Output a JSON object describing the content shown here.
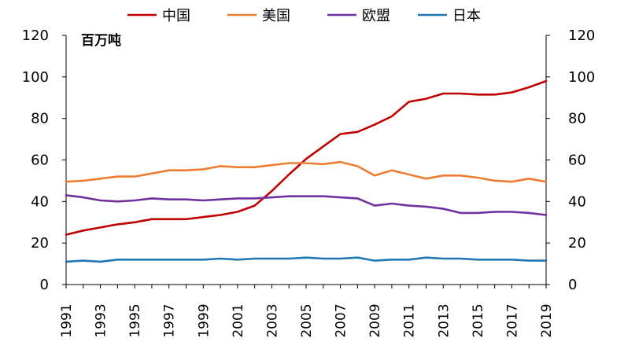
{
  "chart_data": {
    "type": "line",
    "unit_label": "百万吨",
    "x": [
      1991,
      1992,
      1993,
      1994,
      1995,
      1996,
      1997,
      1998,
      1999,
      2000,
      2001,
      2002,
      2003,
      2004,
      2005,
      2006,
      2007,
      2008,
      2009,
      2010,
      2011,
      2012,
      2013,
      2014,
      2015,
      2016,
      2017,
      2018,
      2019
    ],
    "x_tick_labels": [
      "1991",
      "1993",
      "1995",
      "1997",
      "1999",
      "2001",
      "2003",
      "2005",
      "2007",
      "2009",
      "2011",
      "2013",
      "2015",
      "2017",
      "2019"
    ],
    "ylim": [
      0,
      120
    ],
    "y_ticks": [
      0,
      20,
      40,
      60,
      80,
      100,
      120
    ],
    "y_tick_labels": [
      "0",
      "20",
      "40",
      "60",
      "80",
      "100",
      "120"
    ],
    "y2_ticks": [
      0,
      20,
      40,
      60,
      80,
      100,
      120
    ],
    "y2_tick_labels": [
      "0",
      "20",
      "40",
      "60",
      "80",
      "100",
      "120"
    ],
    "legend_position": "top",
    "grid": false,
    "series": [
      {
        "name": "中国",
        "color": "#c00000",
        "values": [
          24,
          26,
          27.5,
          29,
          30,
          31.5,
          31.5,
          31.5,
          32.5,
          33.5,
          35,
          38,
          45,
          53,
          60.5,
          66.5,
          72.5,
          73.5,
          77,
          81,
          88,
          89.5,
          92,
          92,
          91.5,
          91.5,
          92.5,
          95,
          98
        ]
      },
      {
        "name": "美国",
        "color": "#ed7d31",
        "values": [
          49.5,
          50,
          51,
          52,
          52,
          53.5,
          55,
          55,
          55.5,
          57,
          56.5,
          56.5,
          57.5,
          58.5,
          58.5,
          58,
          59,
          57,
          52.5,
          55,
          53,
          51,
          52.5,
          52.5,
          51.5,
          50,
          49.5,
          51,
          49.5
        ]
      },
      {
        "name": "欧盟",
        "color": "#7030a0",
        "values": [
          43,
          42,
          40.5,
          40,
          40.5,
          41.5,
          41,
          41,
          40.5,
          41,
          41.5,
          41.5,
          42,
          42.5,
          42.5,
          42.5,
          42,
          41.5,
          38,
          39,
          38,
          37.5,
          36.5,
          34.5,
          34.5,
          35,
          35,
          34.5,
          33.5
        ]
      },
      {
        "name": "日本",
        "color": "#1f77b4",
        "values": [
          11,
          11.5,
          11,
          12,
          12,
          12,
          12,
          12,
          12,
          12.5,
          12,
          12.5,
          12.5,
          12.5,
          13,
          12.5,
          12.5,
          13,
          11.5,
          12,
          12,
          13,
          12.5,
          12.5,
          12,
          12,
          12,
          11.5,
          11.5
        ]
      }
    ]
  }
}
